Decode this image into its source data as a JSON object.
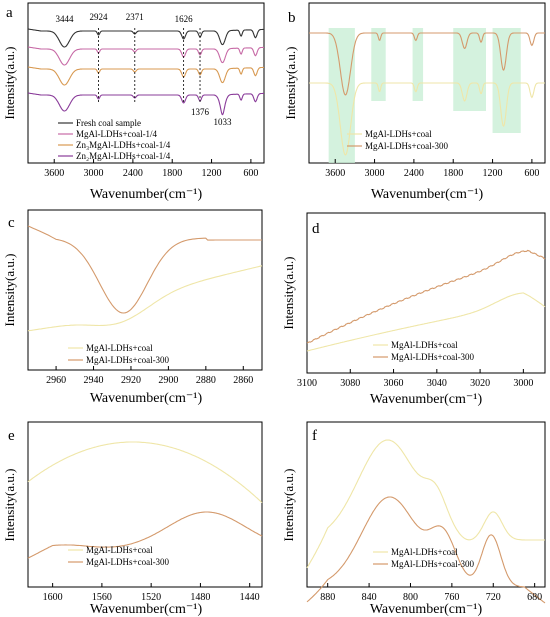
{
  "colors": {
    "fresh": "#333333",
    "mgal": "#c76aa6",
    "zn3": "#d89a52",
    "zn2": "#8a3c9a",
    "coal": "#efe6a8",
    "coal300": "#d49a6c",
    "highlight": "#c9efd6"
  },
  "chart_data": [
    {
      "panel": "a",
      "type": "line",
      "xlabel": "Wavenumber(cm⁻¹)",
      "ylabel": "Intensity(a.u.)",
      "xlim": [
        4000,
        400
      ],
      "xticks": [
        "3600",
        "3000",
        "2400",
        "1800",
        "1200",
        "600"
      ],
      "xtick_values": [
        3600,
        3000,
        2400,
        1800,
        1200,
        600
      ],
      "annotations": [
        {
          "text": "3444",
          "x": 3444
        },
        {
          "text": "2924",
          "x": 2924
        },
        {
          "text": "2371",
          "x": 2371
        },
        {
          "text": "1626",
          "x": 1626
        },
        {
          "text": "1376",
          "x": 1376
        },
        {
          "text": "1033",
          "x": 1033
        }
      ],
      "legend": "bottom-left",
      "series": [
        {
          "name": "Fresh coal sample",
          "color_key": "fresh"
        },
        {
          "name": "MgAl-LDHs+coal-1/4",
          "color_key": "mgal"
        },
        {
          "name": "Zn₃MgAl-LDHs+coal-1/4",
          "color_key": "zn3"
        },
        {
          "name": "Zn₂MgAl-LDHs+coal-1/4",
          "color_key": "zn2"
        }
      ]
    },
    {
      "panel": "b",
      "type": "line",
      "xlabel": "Wavenumber(cm⁻¹)",
      "ylabel": "Intensity(a.u.)",
      "xlim": [
        4000,
        400
      ],
      "xticks": [
        "3600",
        "3000",
        "2400",
        "1800",
        "1200",
        "600"
      ],
      "xtick_values": [
        3600,
        3000,
        2400,
        1800,
        1200,
        600
      ],
      "highlight_bands": [
        [
          3700,
          3300
        ],
        [
          3050,
          2830
        ],
        [
          2420,
          2260
        ],
        [
          1800,
          1300
        ],
        [
          1200,
          770
        ]
      ],
      "legend": "bottom-left",
      "series": [
        {
          "name": "MgAl-LDHs+coal",
          "color_key": "coal"
        },
        {
          "name": "MgAl-LDHs+coal-300",
          "color_key": "coal300"
        }
      ]
    },
    {
      "panel": "c",
      "type": "line",
      "xlabel": "Wavenumber(cm⁻¹)",
      "ylabel": "Intensity(a.u.)",
      "xlim": [
        2975,
        2850
      ],
      "xticks": [
        "2960",
        "2940",
        "2920",
        "2900",
        "2880",
        "2860"
      ],
      "xtick_values": [
        2960,
        2940,
        2920,
        2900,
        2880,
        2860
      ],
      "legend": "bottom-center",
      "series": [
        {
          "name": "MgAl-LDHs+coal",
          "color_key": "coal"
        },
        {
          "name": "MgAl-LDHs+coal-300",
          "color_key": "coal300"
        }
      ]
    },
    {
      "panel": "d",
      "type": "line",
      "xlabel": "Wavenumber(cm⁻¹)",
      "ylabel": "Intensity(a.u.)",
      "xlim": [
        3100,
        2990
      ],
      "xticks": [
        "3100",
        "3080",
        "3060",
        "3040",
        "3020",
        "3000"
      ],
      "xtick_values": [
        3100,
        3080,
        3060,
        3040,
        3020,
        3000
      ],
      "legend": "bottom-center",
      "series": [
        {
          "name": "MgAl-LDHs+coal",
          "color_key": "coal"
        },
        {
          "name": "MgAl-LDHs+coal-300",
          "color_key": "coal300"
        }
      ]
    },
    {
      "panel": "e",
      "type": "line",
      "xlabel": "Wavenumber(cm⁻¹)",
      "ylabel": "Intensity(a.u.)",
      "xlim": [
        1620,
        1430
      ],
      "xticks": [
        "1600",
        "1560",
        "1520",
        "1480",
        "1440"
      ],
      "xtick_values": [
        1600,
        1560,
        1520,
        1480,
        1440
      ],
      "legend": "bottom-center",
      "series": [
        {
          "name": "MgAl-LDHs+coal",
          "color_key": "coal"
        },
        {
          "name": "MgAl-LDHs+coal-300",
          "color_key": "coal300"
        }
      ]
    },
    {
      "panel": "f",
      "type": "line",
      "xlabel": "Wavenumber(cm⁻¹)",
      "ylabel": "Intensity(a.u.)",
      "xlim": [
        900,
        670
      ],
      "xticks": [
        "880",
        "840",
        "800",
        "760",
        "720",
        "680"
      ],
      "xtick_values": [
        880,
        840,
        800,
        760,
        720,
        680
      ],
      "legend": "bottom-center",
      "series": [
        {
          "name": "MgAl-LDHs+coal",
          "color_key": "coal"
        },
        {
          "name": "MgAl-LDHs+coal-300",
          "color_key": "coal300"
        }
      ]
    }
  ]
}
